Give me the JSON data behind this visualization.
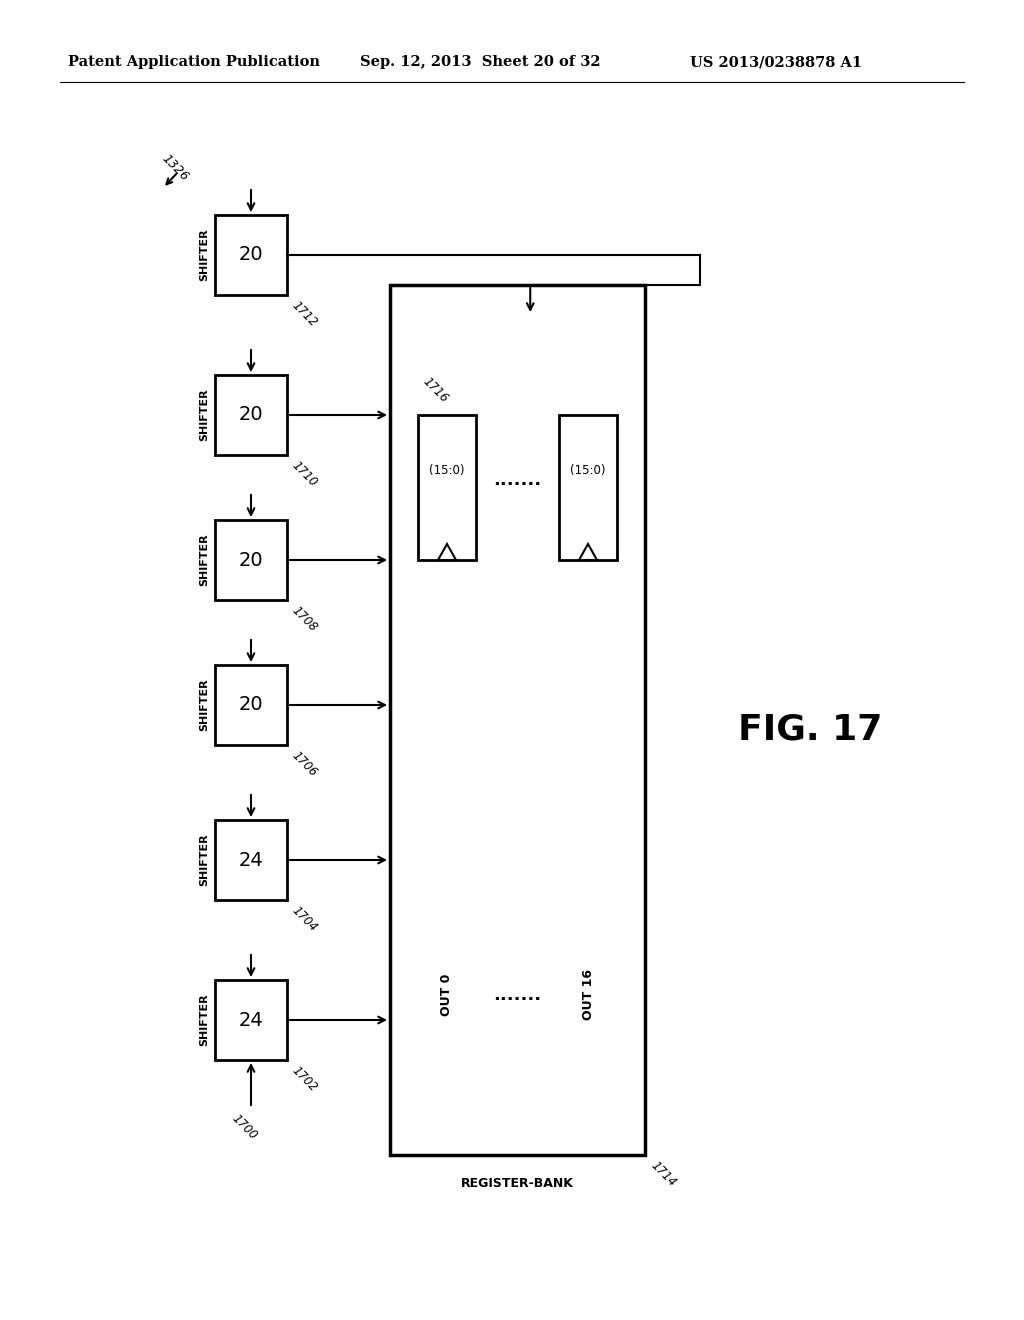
{
  "bg_color": "#ffffff",
  "header_left": "Patent Application Publication",
  "header_mid": "Sep. 12, 2013  Sheet 20 of 32",
  "header_right": "US 2013/0238878 A1",
  "fig_label": "FIG. 17",
  "diagram_label": "1326",
  "shifters": [
    {
      "label": "SHIFTER",
      "value": "24",
      "id": "1702",
      "has_bottom_input": true
    },
    {
      "label": "SHIFTER",
      "value": "24",
      "id": "1704",
      "has_bottom_input": false
    },
    {
      "label": "SHIFTER",
      "value": "20",
      "id": "1706",
      "has_bottom_input": false
    },
    {
      "label": "SHIFTER",
      "value": "20",
      "id": "1708",
      "has_bottom_input": false
    },
    {
      "label": "SHIFTER",
      "value": "20",
      "id": "1710",
      "has_bottom_input": false
    },
    {
      "label": "SHIFTER",
      "value": "20",
      "id": "1712",
      "has_bottom_input": false
    }
  ],
  "register_bank_label": "REGISTER-BANK",
  "register_bank_id": "1714",
  "register_16_id": "1716",
  "out_labels": [
    "OUT 0",
    "OUT 16"
  ],
  "slot_labels": [
    "(15:0)",
    "(15:0)"
  ],
  "bottom_input_id": "1700"
}
